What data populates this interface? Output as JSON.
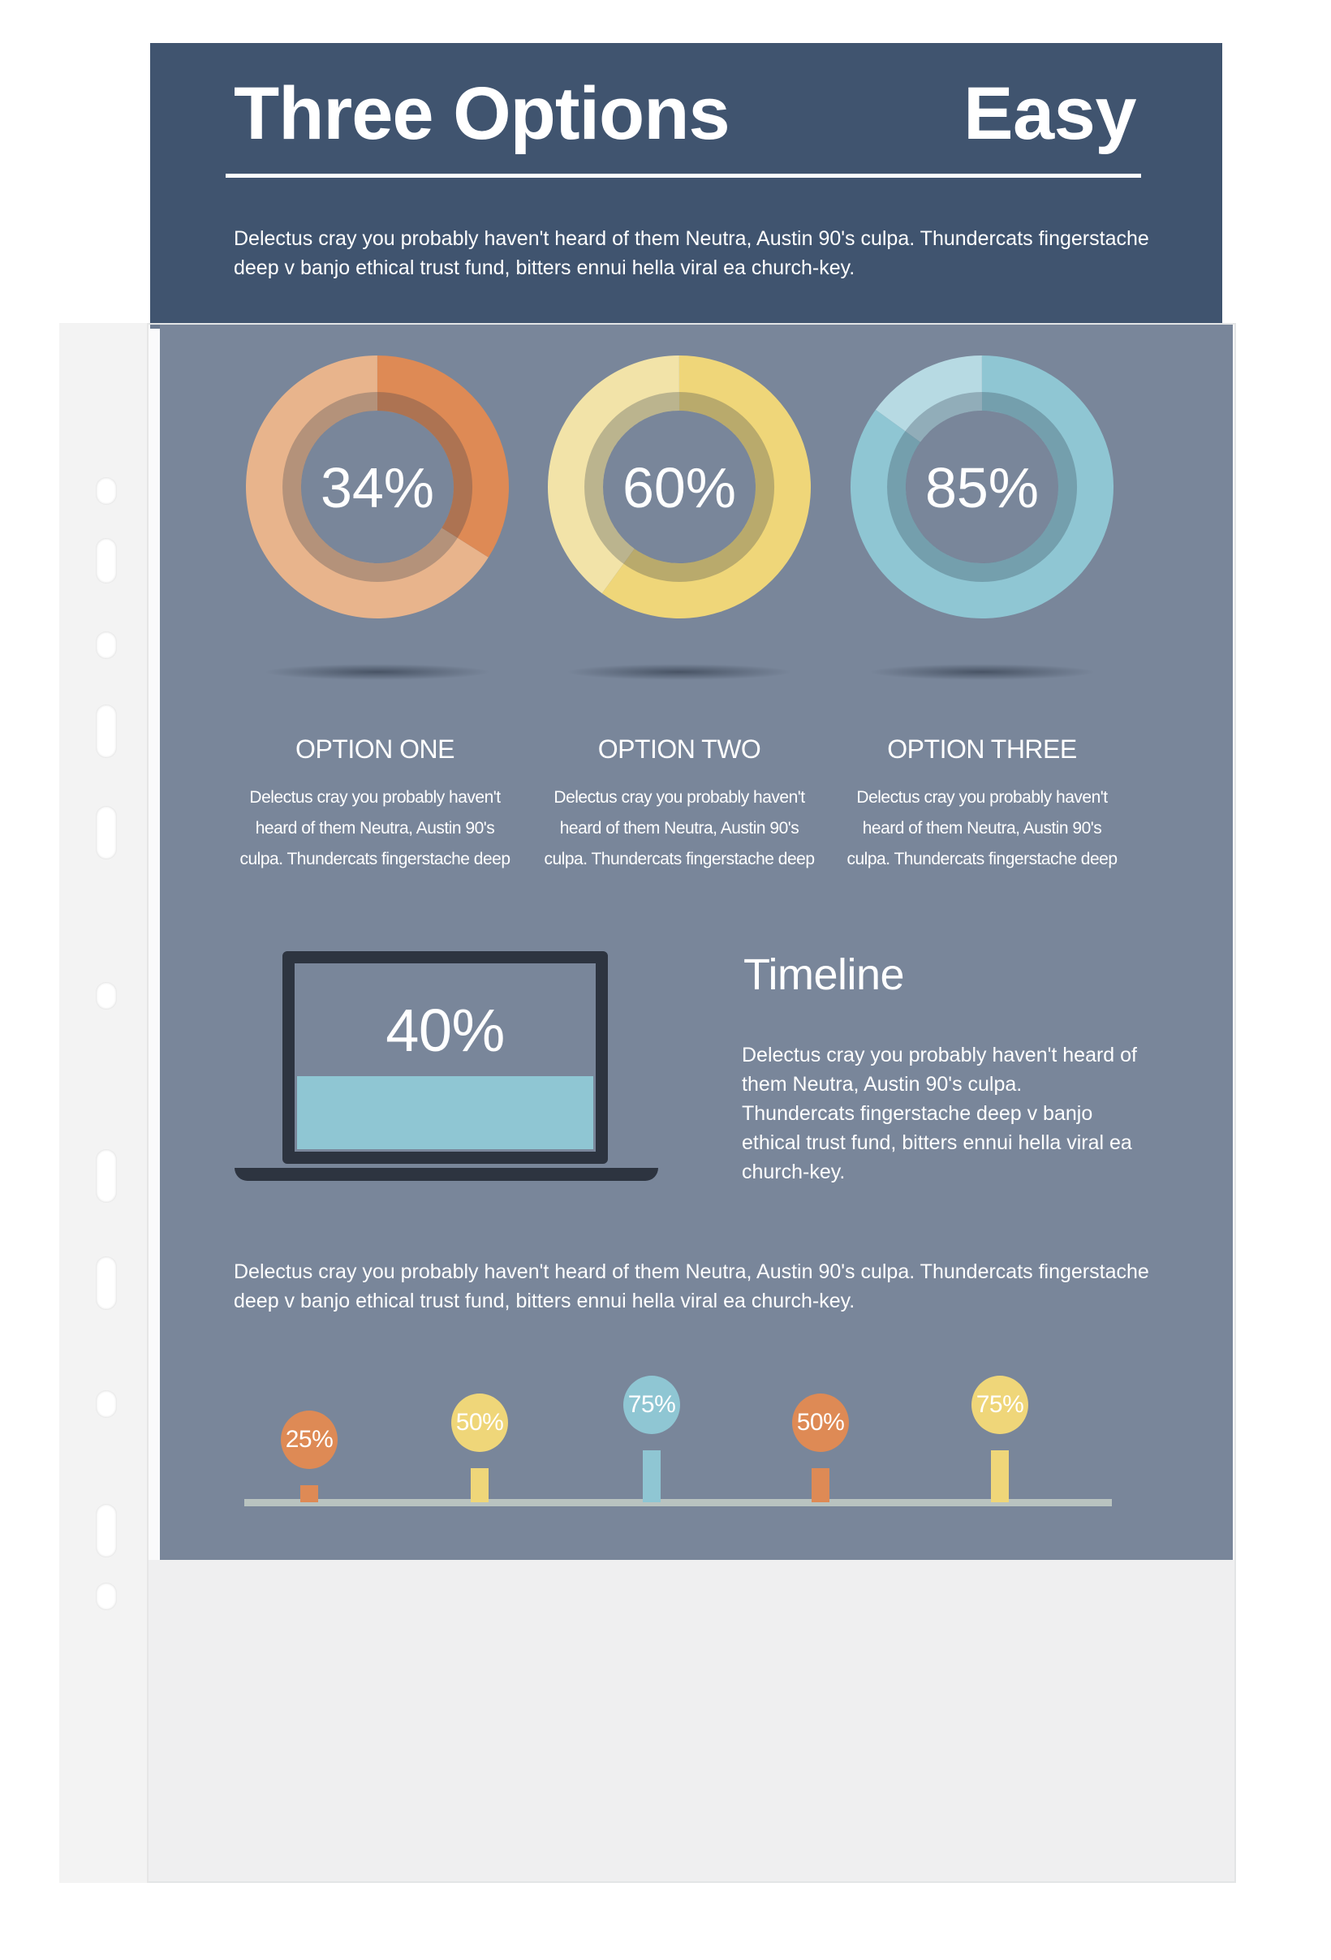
{
  "header": {
    "title": "Three Options",
    "right_title": "Easy",
    "intro": "Delectus cray you probably haven't heard of them Neutra, Austin 90's culpa. Thundercats fingerstache deep v banjo ethical trust fund, bitters ennui hella viral ea church-key."
  },
  "options": [
    {
      "percent_label": "34%",
      "value": 34,
      "title": "OPTION ONE",
      "text": "Delectus cray you probably haven't heard of them Neutra, Austin 90's culpa. Thundercats fingerstache deep",
      "color": "#de8a55",
      "light": "#e8b48c"
    },
    {
      "percent_label": "60%",
      "value": 60,
      "title": "OPTION TWO",
      "text": "Delectus cray you probably haven't heard of them Neutra, Austin 90's culpa. Thundercats fingerstache deep",
      "color": "#efd679",
      "light": "#f2e3a8"
    },
    {
      "percent_label": "85%",
      "value": 85,
      "title": "OPTION THREE",
      "text": "Delectus cray you probably haven't heard of them Neutra, Austin 90's culpa. Thundercats fingerstache deep",
      "color": "#8fc6d3",
      "light": "#b7dae3"
    }
  ],
  "laptop": {
    "percent_label": "40%",
    "value": 40,
    "fill_color": "#8fc6d3"
  },
  "timeline": {
    "title": "Timeline",
    "text": "Delectus cray you probably haven't heard of them Neutra, Austin 90's culpa. Thundercats fingerstache deep v banjo ethical trust fund, bitters ennui hella viral ea church-key."
  },
  "footer_text": "Delectus cray you probably haven't heard of them Neutra, Austin 90's culpa. Thundercats fingerstache deep v banjo ethical trust fund, bitters ennui hella viral ea church-key.",
  "markers": [
    {
      "label": "25%",
      "value": 25,
      "color": "#de8a55"
    },
    {
      "label": "50%",
      "value": 50,
      "color": "#efd679"
    },
    {
      "label": "75%",
      "value": 75,
      "color": "#8fc6d3"
    },
    {
      "label": "50%",
      "value": 50,
      "color": "#de8a55"
    },
    {
      "label": "75%",
      "value": 75,
      "color": "#efd679"
    }
  ]
}
